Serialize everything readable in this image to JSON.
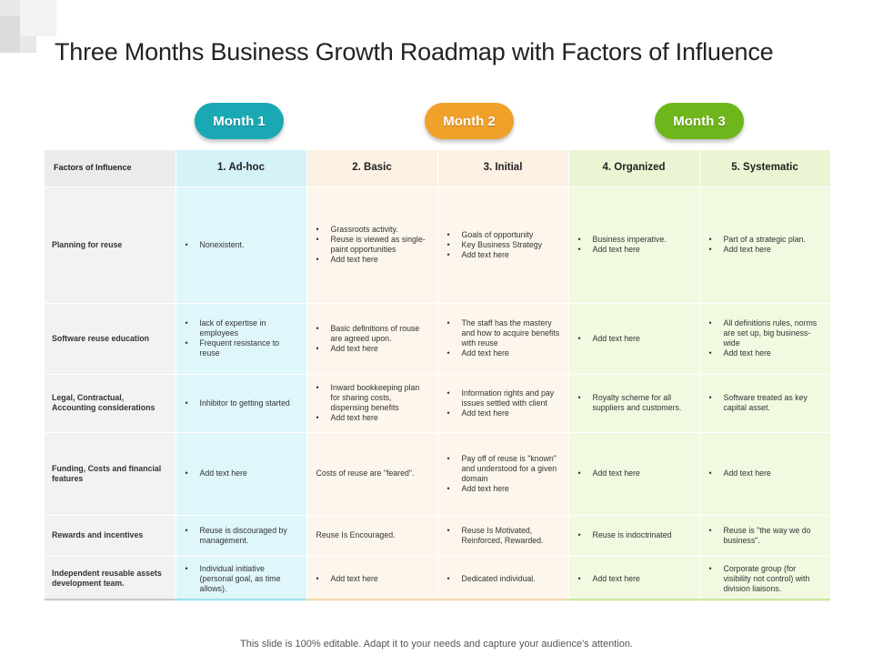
{
  "title": "Three Months Business Growth Roadmap with Factors of Influence",
  "months": [
    {
      "label": "Month 1",
      "color": "#1aa9b4"
    },
    {
      "label": "Month 2",
      "color": "#f0a12a"
    },
    {
      "label": "Month 3",
      "color": "#6fb61c"
    }
  ],
  "header": {
    "factor": "Factors of Influence",
    "stages": [
      "1. Ad-hoc",
      "2. Basic",
      "3. Initial",
      "4. Organized",
      "5. Systematic"
    ]
  },
  "rows": [
    {
      "factor": "Planning for reuse",
      "cells": [
        [
          "Nonexistent."
        ],
        [
          "Grassroots activity.",
          "Reuse is viewed as single-paint opportunities",
          "Add text here"
        ],
        [
          "Goals of opportunity",
          "Key Business Strategy",
          "Add text here"
        ],
        [
          "Business imperative.",
          "Add text here"
        ],
        [
          "Part of a strategic plan.",
          "Add text here"
        ]
      ]
    },
    {
      "factor": "Software reuse education",
      "cells": [
        [
          "lack of expertise in employees",
          "Frequent resistance to reuse"
        ],
        [
          "Basic definitions of rouse are agreed upon.",
          "Add text here"
        ],
        [
          "The staff has the mastery and how to acquire benefits with reuse",
          "Add text here"
        ],
        [
          "Add text here"
        ],
        [
          "All definitions rules, norms are set up, big business-wide",
          "Add text here"
        ]
      ]
    },
    {
      "factor": "Legal, Contractual, Accounting considerations",
      "cells": [
        [
          "Inhibitor to getting started"
        ],
        [
          "Inward bookkeeping plan for sharing costs, dispensing benefits",
          "Add text here"
        ],
        [
          "Information rights and pay issues settled with client",
          "Add text here"
        ],
        [
          "Royalty scheme for all suppliers and customers."
        ],
        [
          "Software treated as key capital asset."
        ]
      ]
    },
    {
      "factor": "Funding, Costs and financial features",
      "cells": [
        [
          "Add text here"
        ],
        "Costs of reuse are \"feared\".",
        [
          "Pay off of reuse is \"known\" and understood for a given domain",
          "Add text here"
        ],
        [
          "Add text here"
        ],
        [
          "Add text here"
        ]
      ]
    },
    {
      "factor": "Rewards and incentives",
      "cells": [
        [
          "Reuse is discouraged by management."
        ],
        "Reuse Is Encouraged.",
        [
          "Reuse Is Motivated, Reinforced, Rewarded."
        ],
        [
          "Reuse is indoctrinated"
        ],
        [
          "Reuse is \"the way we do business\"."
        ]
      ]
    },
    {
      "factor": "Independent reusable assets development team.",
      "cells": [
        [
          "Individual initiative (personal goal, as time allows)."
        ],
        [
          "Add text here"
        ],
        [
          "Dedicated individual."
        ],
        [
          "Add text here"
        ],
        [
          "Corporate group (for visibility not control) with division liaisons."
        ]
      ]
    }
  ],
  "footer": "This slide is 100% editable. Adapt it to your needs and capture your audience's attention."
}
